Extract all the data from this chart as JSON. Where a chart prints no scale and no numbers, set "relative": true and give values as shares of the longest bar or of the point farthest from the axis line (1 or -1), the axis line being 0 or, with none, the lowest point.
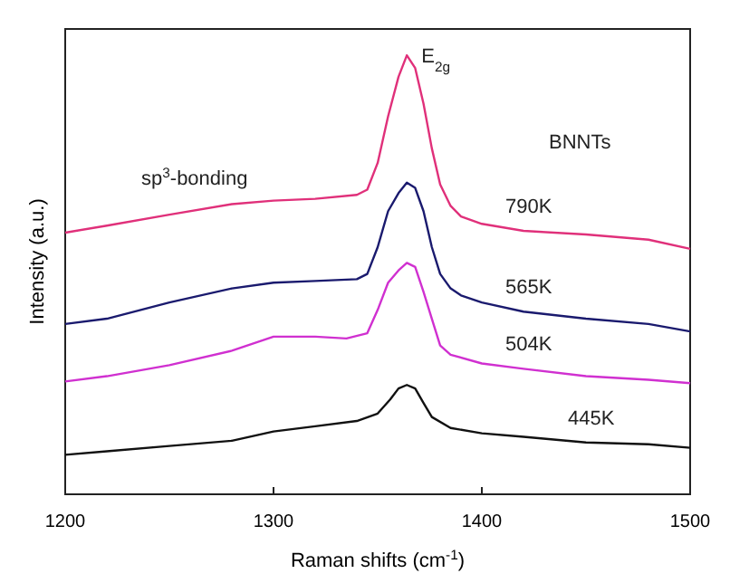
{
  "chart_data": {
    "type": "line",
    "relative": true,
    "xlabel": "Raman shifts (cm$^{-1}$)",
    "ylabel": "Intensity (a.u.)",
    "xlim": [
      1200,
      1500
    ],
    "xticks": [
      1200,
      1300,
      1400,
      1500
    ],
    "grid": false,
    "marker": "none",
    "line_style": "solid",
    "annotations": [
      {
        "text": "E$_{2g}$",
        "x": 1364,
        "y": 1
      },
      "sp$^{3}$-bonding",
      "BNNTs"
    ],
    "series": [
      {
        "name": "790K",
        "color": "#e0307a",
        "x": [
          1200,
          1220,
          1250,
          1280,
          1300,
          1320,
          1340,
          1345,
          1350,
          1355,
          1360,
          1364,
          1368,
          1372,
          1376,
          1380,
          1385,
          1390,
          1400,
          1420,
          1450,
          1480,
          1500
        ],
        "values": [
          0.596,
          0.612,
          0.637,
          0.661,
          0.669,
          0.673,
          0.682,
          0.694,
          0.755,
          0.861,
          0.951,
          1,
          0.971,
          0.89,
          0.788,
          0.706,
          0.657,
          0.633,
          0.616,
          0.6,
          0.592,
          0.58,
          0.559
        ]
      },
      {
        "name": "565K",
        "color": "#1a1a6e",
        "x": [
          1200,
          1220,
          1250,
          1280,
          1300,
          1320,
          1340,
          1345,
          1350,
          1355,
          1360,
          1364,
          1368,
          1372,
          1376,
          1380,
          1385,
          1390,
          1400,
          1420,
          1450,
          1480,
          1500
        ],
        "values": [
          0.388,
          0.4,
          0.437,
          0.469,
          0.482,
          0.486,
          0.49,
          0.502,
          0.563,
          0.645,
          0.686,
          0.71,
          0.698,
          0.645,
          0.563,
          0.502,
          0.469,
          0.453,
          0.437,
          0.416,
          0.4,
          0.388,
          0.371
        ]
      },
      {
        "name": "504K",
        "color": "#d030d0",
        "x": [
          1200,
          1220,
          1250,
          1280,
          1300,
          1320,
          1335,
          1345,
          1350,
          1355,
          1360,
          1364,
          1368,
          1372,
          1376,
          1380,
          1385,
          1400,
          1420,
          1450,
          1480,
          1500
        ],
        "values": [
          0.257,
          0.269,
          0.294,
          0.327,
          0.359,
          0.359,
          0.355,
          0.367,
          0.42,
          0.482,
          0.51,
          0.527,
          0.518,
          0.461,
          0.4,
          0.339,
          0.318,
          0.298,
          0.286,
          0.269,
          0.261,
          0.253
        ]
      },
      {
        "name": "445K",
        "color": "#111111",
        "x": [
          1200,
          1220,
          1250,
          1280,
          1300,
          1320,
          1340,
          1350,
          1356,
          1360,
          1364,
          1368,
          1372,
          1376,
          1385,
          1400,
          1420,
          1450,
          1480,
          1500
        ],
        "values": [
          0.09,
          0.098,
          0.11,
          0.122,
          0.143,
          0.155,
          0.167,
          0.184,
          0.216,
          0.241,
          0.249,
          0.241,
          0.208,
          0.176,
          0.151,
          0.139,
          0.131,
          0.118,
          0.114,
          0.106
        ]
      }
    ]
  }
}
